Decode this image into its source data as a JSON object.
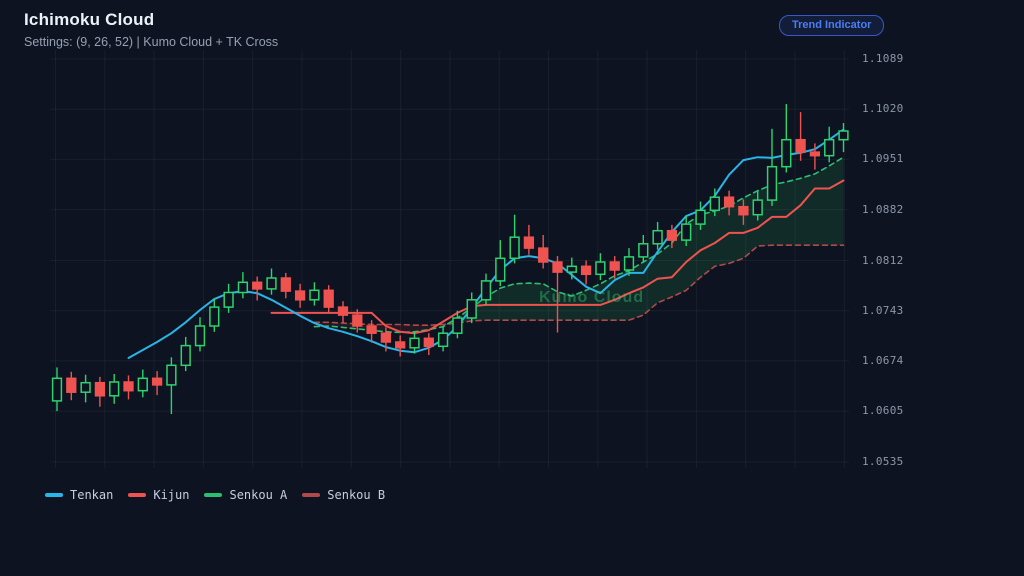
{
  "header": {
    "title": "Ichimoku Cloud",
    "subtitle": "Settings: (9, 26, 52) | Kumo Cloud + TK Cross",
    "badge": "Trend Indicator"
  },
  "watermark": "Kumo Cloud",
  "colors": {
    "bg": "#0d1320",
    "grid": "rgba(160,174,192,0.08)",
    "bull": "#2dd36f",
    "bear": "#ef5350",
    "cloud_bull": "rgba(45,211,111,0.13)",
    "cloud_bear": "rgba(239,83,80,0.10)",
    "watermark": "rgba(61,213,121,0.38)",
    "axis_text": "#8d97a9",
    "badge_text": "#4d7df2",
    "badge_border": "#3a57c4"
  },
  "legend": [
    {
      "label": "Tenkan",
      "color": "#29b5e8"
    },
    {
      "label": "Kijun",
      "color": "#ef5350"
    },
    {
      "label": "Senkou A",
      "color": "#2dbd6e"
    },
    {
      "label": "Senkou B",
      "color": "#b04a4a"
    }
  ],
  "chart_data": {
    "type": "candlestick",
    "title": "Ichimoku Cloud",
    "settings": [
      9,
      26,
      52
    ],
    "y_tick_labels": [
      "1.1089",
      "1.1020",
      "1.0951",
      "1.0882",
      "1.0812",
      "1.0743",
      "1.0674",
      "1.0605",
      "1.0535"
    ],
    "ylim": [
      1.0535,
      1.1089
    ],
    "grid": true,
    "candles": [
      [
        1.0619,
        1.0665,
        1.0605,
        1.065
      ],
      [
        1.065,
        1.0659,
        1.062,
        1.0631
      ],
      [
        1.0631,
        1.0655,
        1.0617,
        1.0644
      ],
      [
        1.0644,
        1.0652,
        1.0611,
        1.0626
      ],
      [
        1.0626,
        1.0656,
        1.0615,
        1.0645
      ],
      [
        1.0645,
        1.0654,
        1.0621,
        1.0633
      ],
      [
        1.0633,
        1.0662,
        1.0624,
        1.065
      ],
      [
        1.065,
        1.066,
        1.0627,
        1.0641
      ],
      [
        1.0641,
        1.0679,
        1.0601,
        1.0668
      ],
      [
        1.0668,
        1.0707,
        1.066,
        1.0695
      ],
      [
        1.0695,
        1.0734,
        1.0687,
        1.0722
      ],
      [
        1.0722,
        1.076,
        1.0714,
        1.0748
      ],
      [
        1.0748,
        1.078,
        1.074,
        1.0768
      ],
      [
        1.0768,
        1.0796,
        1.076,
        1.0782
      ],
      [
        1.0782,
        1.079,
        1.0757,
        1.0773
      ],
      [
        1.0773,
        1.0801,
        1.0765,
        1.0788
      ],
      [
        1.0788,
        1.0795,
        1.076,
        1.077
      ],
      [
        1.077,
        1.078,
        1.0747,
        1.0758
      ],
      [
        1.0758,
        1.0782,
        1.075,
        1.0771
      ],
      [
        1.0771,
        1.0778,
        1.074,
        1.0748
      ],
      [
        1.0748,
        1.0756,
        1.0726,
        1.0737
      ],
      [
        1.0737,
        1.0745,
        1.0713,
        1.0722
      ],
      [
        1.0722,
        1.073,
        1.0699,
        1.0712
      ],
      [
        1.0712,
        1.072,
        1.0687,
        1.07
      ],
      [
        1.07,
        1.0709,
        1.068,
        1.0692
      ],
      [
        1.0692,
        1.0715,
        1.0684,
        1.0705
      ],
      [
        1.0705,
        1.0712,
        1.0682,
        1.0694
      ],
      [
        1.0694,
        1.0722,
        1.0687,
        1.0712
      ],
      [
        1.0712,
        1.0743,
        1.0705,
        1.0733
      ],
      [
        1.0733,
        1.0768,
        1.0726,
        1.0758
      ],
      [
        1.0758,
        1.0794,
        1.0751,
        1.0784
      ],
      [
        1.0784,
        1.084,
        1.0777,
        1.0815
      ],
      [
        1.0815,
        1.0875,
        1.0808,
        1.0844
      ],
      [
        1.0844,
        1.0861,
        1.082,
        1.0829
      ],
      [
        1.0829,
        1.0847,
        1.0801,
        1.081
      ],
      [
        1.081,
        1.0818,
        1.0713,
        1.0796
      ],
      [
        1.0796,
        1.0816,
        1.0786,
        1.0804
      ],
      [
        1.0804,
        1.0812,
        1.0779,
        1.0793
      ],
      [
        1.0793,
        1.0822,
        1.0785,
        1.081
      ],
      [
        1.081,
        1.0818,
        1.0787,
        1.0799
      ],
      [
        1.0799,
        1.0829,
        1.0791,
        1.0817
      ],
      [
        1.0817,
        1.0847,
        1.0809,
        1.0835
      ],
      [
        1.0835,
        1.0865,
        1.0827,
        1.0853
      ],
      [
        1.0853,
        1.0861,
        1.0829,
        1.084
      ],
      [
        1.084,
        1.0874,
        1.0832,
        1.0862
      ],
      [
        1.0862,
        1.0893,
        1.0854,
        1.0881
      ],
      [
        1.0881,
        1.0911,
        1.0873,
        1.0899
      ],
      [
        1.0899,
        1.0908,
        1.0874,
        1.0886
      ],
      [
        1.0886,
        1.0896,
        1.0861,
        1.0875
      ],
      [
        1.0875,
        1.0908,
        1.0867,
        1.0895
      ],
      [
        1.0895,
        1.0993,
        1.0887,
        1.0941
      ],
      [
        1.0941,
        1.1027,
        1.0933,
        1.0978
      ],
      [
        1.0978,
        1.1016,
        1.0949,
        1.0961
      ],
      [
        1.0961,
        1.0973,
        1.0937,
        1.0956
      ],
      [
        1.0956,
        1.0996,
        1.0947,
        1.0978
      ],
      [
        1.0978,
        1.1001,
        1.0961,
        1.099
      ]
    ],
    "series": [
      {
        "name": "Tenkan",
        "color": "#29b5e8",
        "width": 2,
        "dashed": false,
        "start": 5,
        "values": [
          1.0678,
          1.0689,
          1.07,
          1.0712,
          1.0727,
          1.0744,
          1.0759,
          1.0767,
          1.077,
          1.0767,
          1.0758,
          1.0747,
          1.0736,
          1.0726,
          1.0719,
          1.0714,
          1.0708,
          1.0701,
          1.0693,
          1.0688,
          1.0686,
          1.0692,
          1.0703,
          1.0721,
          1.0747,
          1.0774,
          1.0799,
          1.0815,
          1.0818,
          1.0815,
          1.0808,
          1.0792,
          1.0776,
          1.0767,
          1.0785,
          1.0795,
          1.0795,
          1.0824,
          1.0851,
          1.0873,
          1.0881,
          1.0901,
          1.093,
          1.095,
          1.0954,
          1.0953,
          1.0957,
          1.096,
          1.0965,
          1.0978,
          1.0992
        ]
      },
      {
        "name": "Kijun",
        "color": "#ef5350",
        "width": 2,
        "dashed": false,
        "start": 15,
        "values": [
          1.074,
          1.074,
          1.074,
          1.074,
          1.074,
          1.074,
          1.074,
          1.074,
          1.0722,
          1.0714,
          1.0712,
          1.0716,
          1.0728,
          1.074,
          1.0749,
          1.0751,
          1.0751,
          1.0751,
          1.0751,
          1.0751,
          1.0751,
          1.0751,
          1.0751,
          1.0751,
          1.0758,
          1.0767,
          1.0775,
          1.0787,
          1.0789,
          1.081,
          1.0826,
          1.0836,
          1.085,
          1.085,
          1.0857,
          1.0872,
          1.0872,
          1.0888,
          1.0911,
          1.0911,
          1.0922
        ]
      },
      {
        "name": "Senkou A",
        "color": "#2dbd6e",
        "width": 1.6,
        "dashed": true,
        "start": 18,
        "values": [
          1.0721,
          1.0722,
          1.072,
          1.0718,
          1.0716,
          1.0714,
          1.0713,
          1.0714,
          1.0717,
          1.0721,
          1.0733,
          1.0747,
          1.0762,
          1.0774,
          1.078,
          1.0781,
          1.078,
          1.0769,
          1.0763,
          1.0771,
          1.078,
          1.0791,
          1.0798,
          1.081,
          1.0821,
          1.0836,
          1.0862,
          1.0875,
          1.088,
          1.0887,
          1.0898,
          1.0908,
          1.0916,
          1.092,
          1.0925,
          1.0931,
          1.0942,
          1.0954
        ]
      },
      {
        "name": "Senkou B",
        "color": "#b04a4a",
        "width": 1.6,
        "dashed": true,
        "start": 18,
        "values": [
          1.0727,
          1.0727,
          1.0726,
          1.0725,
          1.0724,
          1.0724,
          1.0724,
          1.0723,
          1.0723,
          1.0724,
          1.0726,
          1.0729,
          1.073,
          1.073,
          1.073,
          1.073,
          1.073,
          1.073,
          1.073,
          1.073,
          1.073,
          1.073,
          1.073,
          1.0737,
          1.0754,
          1.0762,
          1.0771,
          1.0789,
          1.0804,
          1.0808,
          1.0815,
          1.0832,
          1.0833,
          1.0833,
          1.0833,
          1.0833,
          1.0833,
          1.0833
        ]
      }
    ],
    "cloud": {
      "split_index": 28
    }
  }
}
